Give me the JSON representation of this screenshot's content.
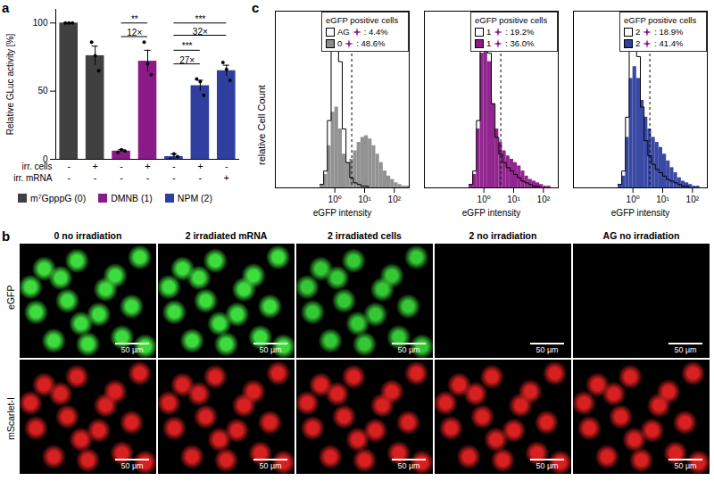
{
  "panel_labels": [
    "a",
    "b",
    "c"
  ],
  "chart_data": [
    {
      "type": "bar",
      "y_label": "Relative GLuc activity [%]",
      "ylim": [
        0,
        110
      ],
      "yticks": [
        0,
        50,
        100
      ],
      "conditions": [
        {
          "label": "irr. cells",
          "values": [
            "-",
            "+",
            "-",
            "+",
            "-",
            "+",
            "-"
          ]
        },
        {
          "label": "irr. mRNA",
          "values": [
            "-",
            "-",
            "-",
            "-",
            "-",
            "-",
            "+"
          ]
        }
      ],
      "series": [
        {
          "name": "m⁷GpppG (0)",
          "color": "#404040",
          "values": [
            100,
            76,
            null,
            null,
            null,
            null,
            null
          ],
          "errors": [
            0,
            7,
            null,
            null,
            null,
            null,
            null
          ],
          "points": [
            [
              100,
              100,
              100
            ],
            [
              86,
              76,
              65
            ],
            null,
            null,
            null,
            null,
            null
          ]
        },
        {
          "name": "DMNB (1)",
          "color": "#8b1a89",
          "values": [
            null,
            null,
            6,
            72,
            null,
            null,
            null
          ],
          "errors": [
            null,
            null,
            1,
            8,
            null,
            null,
            null
          ],
          "points": [
            null,
            null,
            [
              5,
              7,
              6
            ],
            [
              86,
              70,
              62
            ],
            null,
            null,
            null
          ]
        },
        {
          "name": "NPM (2)",
          "color": "#2e3f9f",
          "values": [
            null,
            null,
            null,
            null,
            2,
            54,
            65
          ],
          "errors": [
            null,
            null,
            null,
            null,
            2,
            4,
            4
          ],
          "points": [
            null,
            null,
            null,
            null,
            [
              0,
              4,
              2
            ],
            [
              59,
              57,
              47
            ],
            [
              71,
              66,
              58
            ]
          ]
        }
      ],
      "annotations": [
        {
          "from": 2,
          "to": 3,
          "y": 100,
          "label": "**"
        },
        {
          "from": 2,
          "to": 3,
          "y": 90,
          "label": "12×"
        },
        {
          "from": 4,
          "to": 6,
          "y": 100,
          "label": "***"
        },
        {
          "from": 4,
          "to": 6,
          "y": 91,
          "label": "32×"
        },
        {
          "from": 4,
          "to": 5,
          "y": 80,
          "label": "***"
        },
        {
          "from": 4,
          "to": 5,
          "y": 70,
          "label": "27×"
        }
      ]
    },
    {
      "type": "histogram",
      "x_label": "eGFP intensity",
      "y_label": "relative Cell Count",
      "log": "x",
      "xlim": [
        0.01,
        316.2
      ],
      "xticks": [
        {
          "value": 1,
          "label": "10⁰"
        },
        {
          "value": 10,
          "label": "10¹"
        },
        {
          "value": 100,
          "label": "10²"
        }
      ],
      "ylim": [
        0,
        1.05
      ],
      "tick_labels": "x",
      "threshold": 3.7,
      "legend_title": "eGFP positive cells",
      "bins": [
        0.3162,
        0.4217,
        0.5623,
        0.7499,
        1,
        1.334,
        1.778,
        2.371,
        3.162,
        4.217,
        5.623,
        7.499,
        10,
        13.34,
        17.78,
        23.71,
        31.62,
        42.17,
        56.23,
        74.99,
        100,
        133.4,
        177.8,
        237.1,
        316.2
      ],
      "series": [
        {
          "name": "AG",
          "color": "#ffffff",
          "positive_label": ": 4.4%",
          "values": [
            0.02,
            0.1,
            0.4,
            0.85,
            1.0,
            0.75,
            0.35,
            0.15,
            0.06,
            0.03,
            0.02,
            0.01,
            0.01,
            0,
            0,
            0,
            0,
            0,
            0,
            0,
            0,
            0,
            0,
            0
          ]
        },
        {
          "name": "0",
          "color": "#8c8c8c",
          "positive_label": ": 48.6%",
          "values": [
            0.02,
            0.08,
            0.25,
            0.45,
            0.48,
            0.35,
            0.2,
            0.15,
            0.17,
            0.22,
            0.27,
            0.3,
            0.31,
            0.29,
            0.25,
            0.2,
            0.15,
            0.1,
            0.07,
            0.05,
            0.03,
            0.02,
            0.01,
            0.01
          ]
        }
      ]
    },
    {
      "type": "histogram",
      "x_label": "eGFP intensity",
      "log": "x",
      "xlim": [
        0.01,
        316.2
      ],
      "xticks": [
        {
          "value": 1,
          "label": "10⁰"
        },
        {
          "value": 10,
          "label": "10¹"
        },
        {
          "value": 100,
          "label": "10²"
        }
      ],
      "ylim": [
        0,
        1.05
      ],
      "tick_labels": "x",
      "threshold": 3.7,
      "legend_title": "eGFP positive cells",
      "bins": [
        0.3162,
        0.4217,
        0.5623,
        0.7499,
        1,
        1.334,
        1.778,
        2.371,
        3.162,
        4.217,
        5.623,
        7.499,
        10,
        13.34,
        17.78,
        23.71,
        31.62,
        42.17,
        56.23,
        74.99,
        100,
        133.4,
        177.8,
        237.1,
        316.2
      ],
      "series": [
        {
          "name": "1",
          "color": "#ffffff",
          "positive_label": ": 19.2%",
          "values": [
            0.02,
            0.1,
            0.4,
            0.9,
            1.0,
            0.8,
            0.5,
            0.3,
            0.2,
            0.15,
            0.12,
            0.1,
            0.08,
            0.06,
            0.04,
            0.03,
            0.02,
            0.01,
            0.01,
            0,
            0,
            0,
            0,
            0
          ]
        },
        {
          "name": "1",
          "color": "#8b1a89",
          "positive_label": ": 36.0%",
          "values": [
            0.02,
            0.08,
            0.35,
            0.8,
            0.88,
            0.75,
            0.5,
            0.35,
            0.27,
            0.22,
            0.19,
            0.17,
            0.15,
            0.13,
            0.1,
            0.07,
            0.05,
            0.04,
            0.03,
            0.02,
            0.01,
            0.01,
            0,
            0
          ]
        }
      ]
    },
    {
      "type": "histogram",
      "x_label": "eGFP intensity",
      "log": "x",
      "xlim": [
        0.01,
        316.2
      ],
      "xticks": [
        {
          "value": 1,
          "label": "10⁰"
        },
        {
          "value": 10,
          "label": "10¹"
        },
        {
          "value": 100,
          "label": "10²"
        }
      ],
      "ylim": [
        0,
        1.05
      ],
      "tick_labels": "x",
      "threshold": 3.7,
      "legend_title": "eGFP positive cells",
      "bins": [
        0.3162,
        0.4217,
        0.5623,
        0.7499,
        1,
        1.334,
        1.778,
        2.371,
        3.162,
        4.217,
        5.623,
        7.499,
        10,
        13.34,
        17.78,
        23.71,
        31.62,
        42.17,
        56.23,
        74.99,
        100,
        133.4,
        177.8,
        237.1,
        316.2
      ],
      "series": [
        {
          "name": "2",
          "color": "#ffffff",
          "positive_label": ": 18.9%",
          "values": [
            0.02,
            0.1,
            0.42,
            0.92,
            1.0,
            0.78,
            0.48,
            0.28,
            0.19,
            0.14,
            0.11,
            0.09,
            0.07,
            0.05,
            0.04,
            0.03,
            0.02,
            0.01,
            0.01,
            0,
            0,
            0,
            0,
            0
          ]
        },
        {
          "name": "2",
          "color": "#2e3f9f",
          "positive_label": ": 41.4%",
          "values": [
            0.02,
            0.07,
            0.3,
            0.65,
            0.72,
            0.65,
            0.52,
            0.42,
            0.35,
            0.3,
            0.27,
            0.24,
            0.2,
            0.16,
            0.12,
            0.09,
            0.06,
            0.04,
            0.03,
            0.02,
            0.01,
            0.01,
            0,
            0
          ]
        }
      ]
    }
  ],
  "micrographs": {
    "columns": [
      "0 no irradiation",
      "2 irradiated mRNA",
      "2 irradiated cells",
      "2 no irradiation",
      "AG no irradiation"
    ],
    "rows": [
      {
        "label": "eGFP",
        "colors": [
          "#3ddc3d",
          "#3ddc3d",
          "#35c835",
          "#000000",
          "#000000"
        ]
      },
      {
        "label": "mScarlet-I",
        "colors": [
          "#d92020",
          "#d92020",
          "#d92020",
          "#d92020",
          "#d92020"
        ]
      }
    ],
    "scale_bar": "50 µm"
  }
}
